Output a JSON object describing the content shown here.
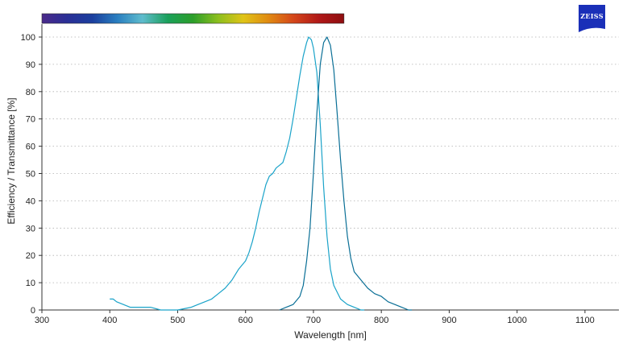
{
  "brand": {
    "logo_text": "ZEISS",
    "logo_color": "#1a2fb8"
  },
  "chart_data": {
    "type": "line",
    "title": "",
    "xlabel": "Wavelength [nm]",
    "ylabel": "Efficiency / Transmittance [%]",
    "xlim": [
      300,
      1150
    ],
    "ylim": [
      0,
      100
    ],
    "xticks": [
      300,
      400,
      500,
      600,
      700,
      800,
      900,
      1000,
      1100
    ],
    "yticks": [
      0,
      10,
      20,
      30,
      40,
      50,
      60,
      70,
      80,
      90,
      100
    ],
    "grid": "horizontal-dotted",
    "legend": "none",
    "spectrum_bar": {
      "range_nm": [
        300,
        745
      ],
      "colors": [
        "#4b2a8a",
        "#2a2f96",
        "#1b3f9e",
        "#2a7fc0",
        "#5fbccd",
        "#1aa05a",
        "#2c9e2a",
        "#8cbf1e",
        "#e0c417",
        "#e08a12",
        "#d4461a",
        "#b01818",
        "#8e0e10"
      ]
    },
    "series": [
      {
        "color": "#1aa3c9",
        "x": [
          400,
          405,
          410,
          420,
          430,
          440,
          460,
          475,
          480,
          500,
          520,
          530,
          540,
          550,
          560,
          570,
          580,
          590,
          600,
          605,
          610,
          615,
          620,
          625,
          630,
          635,
          640,
          645,
          650,
          655,
          660,
          665,
          670,
          675,
          680,
          685,
          690,
          693,
          697,
          700,
          705,
          710,
          715,
          720,
          725,
          730,
          740,
          750,
          760,
          770,
          775
        ],
        "y": [
          4,
          4,
          3,
          2,
          1,
          1,
          1,
          0,
          0,
          0,
          1,
          2,
          3,
          4,
          6,
          8,
          11,
          15,
          18,
          21,
          25,
          30,
          36,
          41,
          46,
          49,
          50,
          52,
          53,
          54,
          58,
          63,
          70,
          78,
          86,
          93,
          98,
          100,
          99,
          96,
          87,
          68,
          45,
          27,
          15,
          9,
          4,
          2,
          1,
          0,
          0
        ]
      },
      {
        "color": "#0a6f96",
        "x": [
          650,
          660,
          670,
          680,
          685,
          690,
          695,
          700,
          705,
          710,
          715,
          720,
          725,
          730,
          735,
          740,
          745,
          750,
          755,
          760,
          770,
          780,
          790,
          800,
          810,
          820,
          830,
          840,
          845
        ],
        "y": [
          0,
          1,
          2,
          5,
          9,
          18,
          30,
          50,
          72,
          90,
          98,
          100,
          97,
          88,
          72,
          55,
          40,
          27,
          19,
          14,
          11,
          8,
          6,
          5,
          3,
          2,
          1,
          0,
          0
        ]
      }
    ]
  }
}
